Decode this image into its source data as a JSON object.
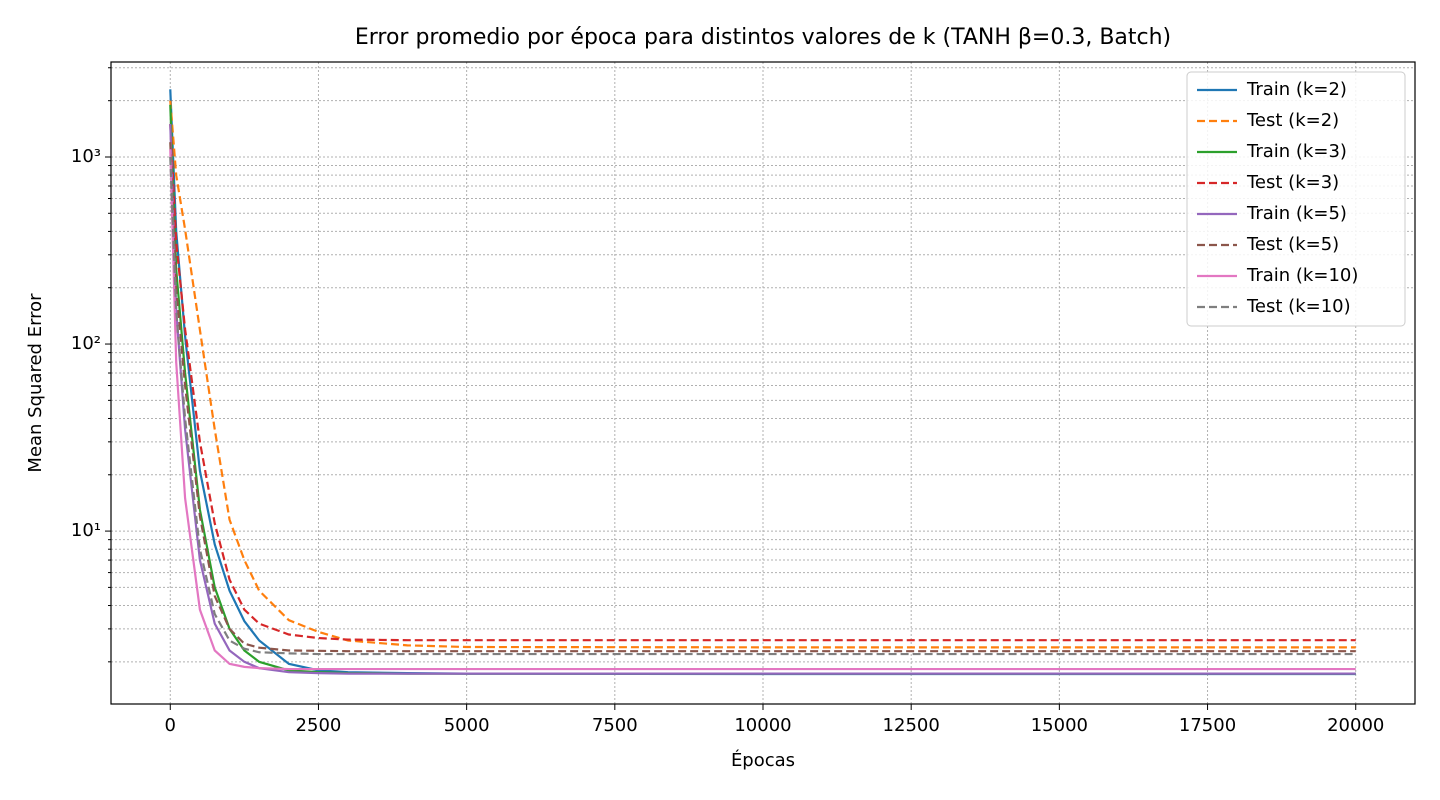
{
  "chart_data": {
    "type": "line",
    "title": "Error promedio por época para distintos valores de k (TANH β=0.3, Batch)",
    "x_label": "Épocas",
    "y_label": "Mean Squared Error",
    "x": [
      0,
      100,
      250,
      500,
      750,
      1000,
      1250,
      1500,
      2000,
      2500,
      3000,
      4000,
      5000,
      10000,
      20000
    ],
    "series": [
      {
        "name": "Train (k=2)",
        "color": "#1f77b4",
        "linestyle": "solid",
        "values": [
          2300,
          400,
          110,
          21,
          8.5,
          4.8,
          3.3,
          2.6,
          1.95,
          1.8,
          1.76,
          1.74,
          1.73,
          1.72,
          1.72
        ]
      },
      {
        "name": "Test (k=2)",
        "color": "#ff7f0e",
        "linestyle": "dashed",
        "values": [
          2000,
          800,
          410,
          119,
          35,
          11.5,
          7,
          4.8,
          3.34,
          2.89,
          2.6,
          2.45,
          2.4,
          2.39,
          2.39
        ]
      },
      {
        "name": "Train (k=3)",
        "color": "#2ca02c",
        "linestyle": "solid",
        "values": [
          1900,
          250,
          70,
          13,
          5,
          3,
          2.3,
          2,
          1.8,
          1.76,
          1.74,
          1.73,
          1.73,
          1.73,
          1.73
        ]
      },
      {
        "name": "Test (k=3)",
        "color": "#d62728",
        "linestyle": "dashed",
        "values": [
          1500,
          350,
          120,
          30,
          11,
          5.5,
          3.8,
          3.2,
          2.8,
          2.68,
          2.63,
          2.61,
          2.61,
          2.61,
          2.61
        ]
      },
      {
        "name": "Train (k=5)",
        "color": "#9467bd",
        "linestyle": "solid",
        "values": [
          1500,
          150,
          35,
          7,
          3.2,
          2.3,
          2,
          1.85,
          1.76,
          1.74,
          1.73,
          1.73,
          1.73,
          1.73,
          1.73
        ]
      },
      {
        "name": "Test (k=5)",
        "color": "#8c564b",
        "linestyle": "dashed",
        "values": [
          1200,
          200,
          60,
          12,
          4.5,
          3,
          2.5,
          2.38,
          2.3,
          2.29,
          2.28,
          2.28,
          2.28,
          2.28,
          2.28
        ]
      },
      {
        "name": "Train (k=10)",
        "color": "#e377c2",
        "linestyle": "solid",
        "values": [
          1100,
          80,
          15,
          3.8,
          2.3,
          1.95,
          1.88,
          1.85,
          1.83,
          1.83,
          1.83,
          1.83,
          1.83,
          1.83,
          1.83
        ]
      },
      {
        "name": "Test (k=10)",
        "color": "#7f7f7f",
        "linestyle": "dashed",
        "values": [
          1000,
          150,
          40,
          8,
          3.6,
          2.6,
          2.35,
          2.25,
          2.22,
          2.2,
          2.2,
          2.2,
          2.2,
          2.2,
          2.2
        ]
      }
    ],
    "xlim": [
      -1000,
      21000
    ],
    "xticks": [
      0,
      2500,
      5000,
      7500,
      10000,
      12500,
      15000,
      17500,
      20000
    ],
    "ylim": [
      1.19,
      3220
    ],
    "y_log_scale": true,
    "yticks": [
      {
        "value": 10,
        "label": "10¹"
      },
      {
        "value": 100,
        "label": "10²"
      },
      {
        "value": 1000,
        "label": "10³"
      }
    ],
    "yminorticks": [
      2,
      3,
      4,
      5,
      6,
      7,
      8,
      9,
      20,
      30,
      40,
      50,
      60,
      70,
      80,
      90,
      200,
      300,
      400,
      500,
      600,
      700,
      800,
      900,
      2000,
      3000
    ],
    "grid": true,
    "legend_position": "upper-right"
  }
}
